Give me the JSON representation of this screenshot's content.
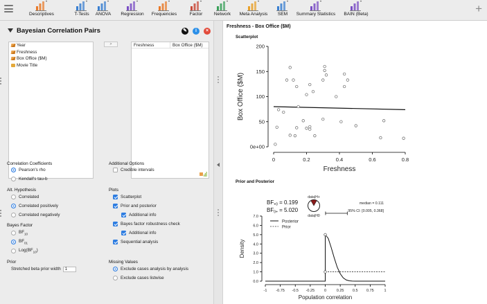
{
  "toolbar": {
    "items": [
      {
        "label": "Descriptives",
        "icon": "descriptives-icon"
      },
      {
        "label": "T-Tests",
        "icon": "ttests-icon"
      },
      {
        "label": "ANOVA",
        "icon": "anova-icon"
      },
      {
        "label": "Regression",
        "icon": "regression-icon"
      },
      {
        "label": "Frequencies",
        "icon": "frequencies-icon"
      },
      {
        "label": "Factor",
        "icon": "factor-icon"
      },
      {
        "label": "Network",
        "icon": "network-icon"
      },
      {
        "label": "Meta Analysis",
        "icon": "meta-analysis-icon"
      },
      {
        "label": "SEM",
        "icon": "sem-icon"
      },
      {
        "label": "Summary Statistics",
        "icon": "summary-statistics-icon"
      },
      {
        "label": "BAIN (Beta)",
        "icon": "bain-icon"
      }
    ],
    "add_label": "+"
  },
  "panel": {
    "title": "Bayesian Correlation Pairs",
    "variables": [
      {
        "name": "Year",
        "type": "scale"
      },
      {
        "name": "Freshness",
        "type": "scale"
      },
      {
        "name": "Box Office ($M)",
        "type": "scale"
      },
      {
        "name": "Movie Title",
        "type": "nominal"
      }
    ],
    "move_label": ">",
    "assigned": [
      "Freshness",
      "Box Office ($M)"
    ],
    "correlation_coefficients": {
      "label": "Correlation Coefficients",
      "pearson": "Pearson's rho",
      "kendall": "Kendall's tau-b",
      "selected": "pearson"
    },
    "alt_hypothesis": {
      "label": "Alt. Hypothesis",
      "correlated": "Correlated",
      "positive": "Correlated positively",
      "negative": "Correlated negatively",
      "selected": "positive"
    },
    "bayes_factor": {
      "label": "Bayes Factor",
      "bf10": "BF",
      "bf10_sub": "10",
      "bf01": "BF",
      "bf01_sub": "01",
      "logbf": "Log(BF",
      "logbf_sub": "10",
      "logbf_close": ")",
      "selected": "bf01"
    },
    "prior": {
      "label": "Prior",
      "width_label": "Stretched beta prior width",
      "width_value": "1"
    },
    "additional_options": {
      "label": "Additional Options",
      "credible_intervals": "Credible intervals"
    },
    "plots": {
      "label": "Plots",
      "scatterplot": "Scatterplot",
      "prior_posterior": "Prior and posterior",
      "additional_info": "Additional info",
      "robustness": "Bayes factor robustness check",
      "robustness_info": "Additional info",
      "sequential": "Sequential analysis"
    },
    "missing_values": {
      "label": "Missing Values",
      "pairwise": "Exclude cases analysis by analysis",
      "listwise": "Exclude cases listwise",
      "selected": "pairwise"
    }
  },
  "output": {
    "section_title": "Freshness - Box Office ($M)",
    "scatter_title": "Scatterplot",
    "prior_title": "Prior and Posterior",
    "bf10_text": "BF",
    "bf10_sub": "+0",
    "bf10_value": "= 0.199",
    "bf01_text": "BF",
    "bf01_sub": "0+",
    "bf01_value": "= 5.020",
    "data_h1": "data|H+",
    "data_h0": "data|H0",
    "median_text": "median = 0.111",
    "ci_text": "95% CI: [0.005, 0.368]",
    "posterior_label": "Posterior",
    "prior_label": "Prior"
  },
  "chart_data": [
    {
      "type": "scatter",
      "title": "",
      "xlabel": "Freshness",
      "ylabel": "Box Office ($M)",
      "xlim": [
        0,
        0.8
      ],
      "ylim": [
        0,
        200
      ],
      "xticks": [
        "0",
        "0.2",
        "0.4",
        "0.6",
        "0.8"
      ],
      "yticks": [
        "0e+00",
        "50",
        "100",
        "150",
        "200"
      ],
      "points": [
        [
          0.01,
          5
        ],
        [
          0.02,
          39
        ],
        [
          0.03,
          74
        ],
        [
          0.06,
          69
        ],
        [
          0.08,
          133
        ],
        [
          0.1,
          23
        ],
        [
          0.1,
          158
        ],
        [
          0.12,
          133
        ],
        [
          0.13,
          22
        ],
        [
          0.14,
          38
        ],
        [
          0.14,
          120
        ],
        [
          0.15,
          80
        ],
        [
          0.18,
          52
        ],
        [
          0.2,
          104
        ],
        [
          0.2,
          37
        ],
        [
          0.22,
          124
        ],
        [
          0.22,
          35
        ],
        [
          0.22,
          40
        ],
        [
          0.24,
          110
        ],
        [
          0.25,
          22
        ],
        [
          0.3,
          55
        ],
        [
          0.3,
          133
        ],
        [
          0.31,
          160
        ],
        [
          0.31,
          152
        ],
        [
          0.32,
          143
        ],
        [
          0.38,
          100
        ],
        [
          0.41,
          50
        ],
        [
          0.43,
          120
        ],
        [
          0.43,
          145
        ],
        [
          0.45,
          133
        ],
        [
          0.5,
          42
        ],
        [
          0.65,
          18
        ],
        [
          0.67,
          52
        ],
        [
          0.79,
          17
        ]
      ],
      "regression_line": [
        [
          0,
          80
        ],
        [
          0.8,
          74
        ]
      ]
    },
    {
      "type": "line",
      "title": "",
      "xlabel": "Population correlation",
      "ylabel": "Density",
      "xlim": [
        -1,
        1
      ],
      "ylim": [
        0,
        7
      ],
      "xticks": [
        "-1",
        "-0.75",
        "-0.5",
        "-0.25",
        "0",
        "0.25",
        "0.5",
        "0.75",
        "1"
      ],
      "yticks": [
        "0.0",
        "1.0",
        "2.0",
        "3.0",
        "4.0",
        "5.0",
        "6.0",
        "7.0"
      ],
      "series": [
        {
          "name": "Posterior",
          "style": "solid",
          "x": [
            0,
            0.05,
            0.1,
            0.15,
            0.2,
            0.25,
            0.3,
            0.35,
            0.4,
            0.45,
            0.5,
            1
          ],
          "y": [
            5.0,
            4.6,
            3.6,
            2.5,
            1.5,
            0.8,
            0.35,
            0.13,
            0.04,
            0.01,
            0,
            0
          ]
        },
        {
          "name": "Prior",
          "style": "dashed",
          "x": [
            0,
            1
          ],
          "y": [
            1.0,
            1.0
          ]
        }
      ],
      "credible_interval": [
        0.005,
        0.368
      ]
    }
  ]
}
